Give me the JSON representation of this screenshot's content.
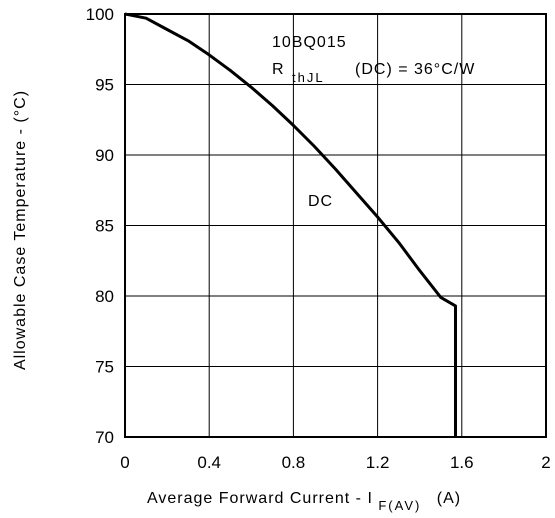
{
  "chart_data": {
    "type": "line",
    "xlabel": {
      "main": "Average Forward Current - I",
      "sub": "F(AV)",
      "unit": "(A)"
    },
    "ylabel": "Allowable Case Temperature - (°C)",
    "xlim": [
      0,
      2
    ],
    "ylim": [
      70,
      100
    ],
    "x_ticks": [
      "0",
      "0.4",
      "0.8",
      "1.2",
      "1.6",
      "2"
    ],
    "y_ticks": [
      "100",
      "95",
      "90",
      "85",
      "80",
      "75",
      "70"
    ],
    "grid": true,
    "annotations": {
      "part": "10BQ015",
      "r_main": "R",
      "r_sub": "thJL",
      "r_value": "(DC) = 36°C/W",
      "curve_label": "DC"
    },
    "series": [
      {
        "name": "DC",
        "x": [
          0,
          0.1,
          0.2,
          0.3,
          0.4,
          0.5,
          0.6,
          0.7,
          0.8,
          0.9,
          1.0,
          1.1,
          1.2,
          1.3,
          1.4,
          1.5,
          1.57,
          1.57
        ],
        "y": [
          100,
          99.7,
          98.9,
          98.1,
          97.1,
          96.0,
          94.8,
          93.5,
          92.1,
          90.6,
          89.0,
          87.3,
          85.6,
          83.8,
          81.8,
          79.9,
          79.3,
          70
        ]
      }
    ]
  }
}
